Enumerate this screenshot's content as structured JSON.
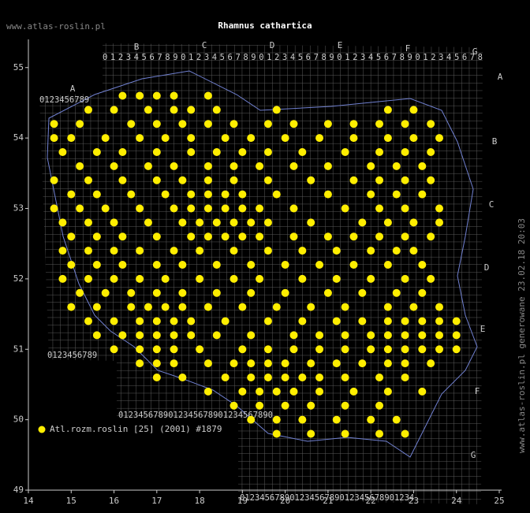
{
  "chart_data": {
    "type": "scatter",
    "title": "Rhamnus cathartica",
    "site": "www.atlas-roslin.pl",
    "side_note": "www.atlas-roslin.pl generowane 23.02.18 20:03",
    "xlim": [
      14,
      25
    ],
    "ylim": [
      49,
      55.4
    ],
    "xticks": [
      14,
      15,
      16,
      17,
      18,
      19,
      20,
      21,
      22,
      23,
      24,
      25
    ],
    "yticks": [
      49,
      50,
      51,
      52,
      53,
      54,
      55
    ],
    "legend": "bottom-left",
    "grid_letters_top": [
      "A",
      "B",
      "C",
      "D",
      "E",
      "F",
      "G"
    ],
    "grid_letters_right": [
      "A",
      "B",
      "C",
      "D",
      "E",
      "F",
      "G"
    ],
    "grid_digits": [
      "0123456789012345678901234567890123456789012345678",
      "0123456789",
      "0123456789",
      "0123456789012345678901234567890",
      "01234567890123456789012345678901234"
    ],
    "series": [
      {
        "name": "Atl.rozm.roslin [25] (2001) #1879",
        "color": "#ffee00",
        "x": [
          16.2,
          16.6,
          17.0,
          17.4,
          18.2,
          15.4,
          16.0,
          16.8,
          17.4,
          17.8,
          18.4,
          19.8,
          22.4,
          23.0,
          14.6,
          15.2,
          16.4,
          17.0,
          17.6,
          18.2,
          18.8,
          19.6,
          20.2,
          21.0,
          21.6,
          22.2,
          22.8,
          23.4,
          14.6,
          15.0,
          15.8,
          16.6,
          17.2,
          17.8,
          18.6,
          19.2,
          20.0,
          20.8,
          21.6,
          22.4,
          23.0,
          23.6,
          14.8,
          15.6,
          16.2,
          17.0,
          17.8,
          18.4,
          19.0,
          19.6,
          20.4,
          21.4,
          22.2,
          22.8,
          23.4,
          15.2,
          16.0,
          16.8,
          17.4,
          18.2,
          18.8,
          19.4,
          20.2,
          21.0,
          22.0,
          22.6,
          23.2,
          14.6,
          15.4,
          16.2,
          17.0,
          17.6,
          18.2,
          18.8,
          19.6,
          20.6,
          21.6,
          22.2,
          22.8,
          23.4,
          15.0,
          15.6,
          16.4,
          17.2,
          17.8,
          18.2,
          18.6,
          19.0,
          19.8,
          21.0,
          22.0,
          22.6,
          23.2,
          14.6,
          15.2,
          15.8,
          16.6,
          17.4,
          17.8,
          18.2,
          18.6,
          19.0,
          19.4,
          20.2,
          21.4,
          22.2,
          22.8,
          23.6,
          14.8,
          15.4,
          16.0,
          16.8,
          17.6,
          18.0,
          18.4,
          18.8,
          19.2,
          19.6,
          20.6,
          21.8,
          22.4,
          23.0,
          23.6,
          15.0,
          15.6,
          16.2,
          17.0,
          17.8,
          18.2,
          18.6,
          19.0,
          19.4,
          20.2,
          21.0,
          21.6,
          22.2,
          22.8,
          23.4,
          14.8,
          15.4,
          16.0,
          16.6,
          17.4,
          18.0,
          18.8,
          19.6,
          20.4,
          21.2,
          22.0,
          22.6,
          23.0,
          15.0,
          15.6,
          16.2,
          17.0,
          17.6,
          18.4,
          19.2,
          20.0,
          20.8,
          21.6,
          22.4,
          23.2,
          14.8,
          15.4,
          16.0,
          16.6,
          17.2,
          18.0,
          18.8,
          19.4,
          20.4,
          21.2,
          22.0,
          22.8,
          23.4,
          15.2,
          15.8,
          16.4,
          17.0,
          17.6,
          18.4,
          19.2,
          20.0,
          21.0,
          21.8,
          22.6,
          23.2,
          15.0,
          15.6,
          16.4,
          16.8,
          17.2,
          17.6,
          18.2,
          19.0,
          19.8,
          20.6,
          21.4,
          22.4,
          23.0,
          23.6,
          15.4,
          16.0,
          16.6,
          17.0,
          17.4,
          17.8,
          18.6,
          19.6,
          20.4,
          21.2,
          21.8,
          22.4,
          22.8,
          23.2,
          23.6,
          24.0,
          15.6,
          16.2,
          16.6,
          17.0,
          17.4,
          17.8,
          18.4,
          19.2,
          20.2,
          20.8,
          21.4,
          22.0,
          22.4,
          22.8,
          23.2,
          23.6,
          24.0,
          16.0,
          16.6,
          17.0,
          17.4,
          18.0,
          19.0,
          19.6,
          20.2,
          20.8,
          21.4,
          22.0,
          22.4,
          22.8,
          23.2,
          23.6,
          24.0,
          16.6,
          17.0,
          17.4,
          18.2,
          18.8,
          19.2,
          19.6,
          20.0,
          20.6,
          21.2,
          21.8,
          22.4,
          22.8,
          23.4,
          17.0,
          17.6,
          18.6,
          19.2,
          19.6,
          20.0,
          20.4,
          20.8,
          21.4,
          22.2,
          22.8,
          18.2,
          19.0,
          19.4,
          19.8,
          20.2,
          20.8,
          21.6,
          22.4,
          23.2,
          18.8,
          19.4,
          20.0,
          20.6,
          21.4,
          22.2,
          19.2,
          19.8,
          20.4,
          21.2,
          22.0,
          22.6,
          19.8,
          20.6,
          21.4,
          22.2,
          22.8
        ],
        "values": [
          54.6,
          54.6,
          54.6,
          54.6,
          54.6,
          54.4,
          54.4,
          54.4,
          54.4,
          54.4,
          54.4,
          54.4,
          54.4,
          54.4,
          54.2,
          54.2,
          54.2,
          54.2,
          54.2,
          54.2,
          54.2,
          54.2,
          54.2,
          54.2,
          54.2,
          54.2,
          54.2,
          54.2,
          54.0,
          54.0,
          54.0,
          54.0,
          54.0,
          54.0,
          54.0,
          54.0,
          54.0,
          54.0,
          54.0,
          54.0,
          54.0,
          54.0,
          53.8,
          53.8,
          53.8,
          53.8,
          53.8,
          53.8,
          53.8,
          53.8,
          53.8,
          53.8,
          53.8,
          53.8,
          53.8,
          53.6,
          53.6,
          53.6,
          53.6,
          53.6,
          53.6,
          53.6,
          53.6,
          53.6,
          53.6,
          53.6,
          53.6,
          53.4,
          53.4,
          53.4,
          53.4,
          53.4,
          53.4,
          53.4,
          53.4,
          53.4,
          53.4,
          53.4,
          53.4,
          53.4,
          53.2,
          53.2,
          53.2,
          53.2,
          53.2,
          53.2,
          53.2,
          53.2,
          53.2,
          53.2,
          53.2,
          53.2,
          53.2,
          53.0,
          53.0,
          53.0,
          53.0,
          53.0,
          53.0,
          53.0,
          53.0,
          53.0,
          53.0,
          53.0,
          53.0,
          53.0,
          53.0,
          53.0,
          52.8,
          52.8,
          52.8,
          52.8,
          52.8,
          52.8,
          52.8,
          52.8,
          52.8,
          52.8,
          52.8,
          52.8,
          52.8,
          52.8,
          52.8,
          52.6,
          52.6,
          52.6,
          52.6,
          52.6,
          52.6,
          52.6,
          52.6,
          52.6,
          52.6,
          52.6,
          52.6,
          52.6,
          52.6,
          52.6,
          52.4,
          52.4,
          52.4,
          52.4,
          52.4,
          52.4,
          52.4,
          52.4,
          52.4,
          52.4,
          52.4,
          52.4,
          52.4,
          52.2,
          52.2,
          52.2,
          52.2,
          52.2,
          52.2,
          52.2,
          52.2,
          52.2,
          52.2,
          52.2,
          52.2,
          52.0,
          52.0,
          52.0,
          52.0,
          52.0,
          52.0,
          52.0,
          52.0,
          52.0,
          52.0,
          52.0,
          52.0,
          52.0,
          51.8,
          51.8,
          51.8,
          51.8,
          51.8,
          51.8,
          51.8,
          51.8,
          51.8,
          51.8,
          51.8,
          51.8,
          51.6,
          51.6,
          51.6,
          51.6,
          51.6,
          51.6,
          51.6,
          51.6,
          51.6,
          51.6,
          51.6,
          51.6,
          51.6,
          51.6,
          51.4,
          51.4,
          51.4,
          51.4,
          51.4,
          51.4,
          51.4,
          51.4,
          51.4,
          51.4,
          51.4,
          51.4,
          51.4,
          51.4,
          51.4,
          51.4,
          51.2,
          51.2,
          51.2,
          51.2,
          51.2,
          51.2,
          51.2,
          51.2,
          51.2,
          51.2,
          51.2,
          51.2,
          51.2,
          51.2,
          51.2,
          51.2,
          51.2,
          51.0,
          51.0,
          51.0,
          51.0,
          51.0,
          51.0,
          51.0,
          51.0,
          51.0,
          51.0,
          51.0,
          51.0,
          51.0,
          51.0,
          51.0,
          51.0,
          50.8,
          50.8,
          50.8,
          50.8,
          50.8,
          50.8,
          50.8,
          50.8,
          50.8,
          50.8,
          50.8,
          50.8,
          50.8,
          50.8,
          50.6,
          50.6,
          50.6,
          50.6,
          50.6,
          50.6,
          50.6,
          50.6,
          50.6,
          50.6,
          50.6,
          50.4,
          50.4,
          50.4,
          50.4,
          50.4,
          50.4,
          50.4,
          50.4,
          50.4,
          50.2,
          50.2,
          50.2,
          50.2,
          50.2,
          50.2,
          50.0,
          50.0,
          50.0,
          50.0,
          50.0,
          50.0,
          49.8,
          49.8,
          49.8,
          49.8,
          49.8
        ]
      }
    ]
  }
}
